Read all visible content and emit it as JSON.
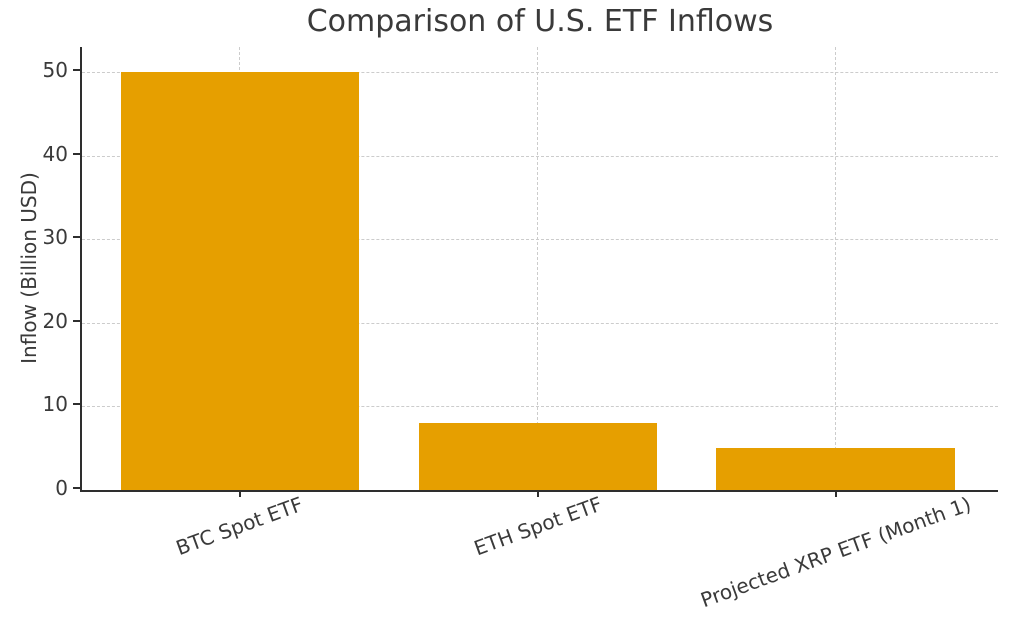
{
  "chart_data": {
    "type": "bar",
    "title": "Comparison of U.S. ETF Inflows",
    "categories": [
      "BTC Spot ETF",
      "ETH Spot ETF",
      "Projected XRP ETF (Month 1)"
    ],
    "values": [
      50,
      8,
      5
    ],
    "xlabel": "",
    "ylabel": "Inflow (Billion USD)",
    "ylim": [
      0,
      53
    ],
    "yticks": [
      0,
      10,
      20,
      30,
      40,
      50
    ],
    "grid": "both",
    "grid_style": "dashed",
    "legend_position": "none",
    "bar_color": "#E69F00",
    "text_color": "#3a3a3a",
    "axis_color": "#2e2e2e",
    "grid_color": "#cccccc"
  }
}
